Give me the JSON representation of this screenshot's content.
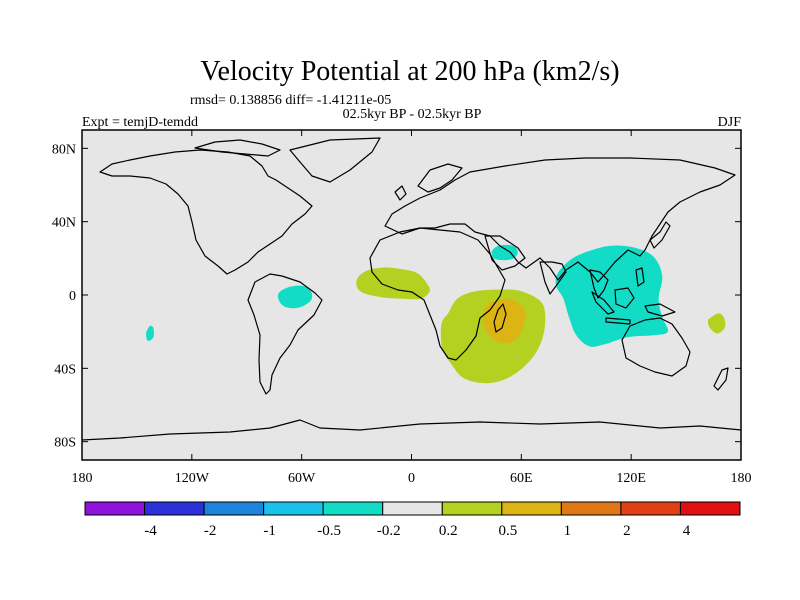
{
  "chart_data": {
    "type": "heatmap",
    "title": "Velocity Potential at 200 hPa (km2/s)",
    "stats_text": "rmsd= 0.138856  diff= -1.41211e-05",
    "left_label": "Expt = temjD-temdd",
    "center_label": "02.5kyr BP - 02.5kyr BP",
    "right_label": "DJF",
    "xlim": [
      -180,
      180
    ],
    "ylim": [
      -90,
      90
    ],
    "x_ticks": [
      {
        "value": -180,
        "label": "180"
      },
      {
        "value": -120,
        "label": "120W"
      },
      {
        "value": -60,
        "label": "60W"
      },
      {
        "value": 0,
        "label": "0"
      },
      {
        "value": 60,
        "label": "60E"
      },
      {
        "value": 120,
        "label": "120E"
      },
      {
        "value": 180,
        "label": "180"
      }
    ],
    "y_ticks": [
      {
        "value": 80,
        "label": "80N"
      },
      {
        "value": 40,
        "label": "40N"
      },
      {
        "value": 0,
        "label": "0"
      },
      {
        "value": -40,
        "label": "40S"
      },
      {
        "value": -80,
        "label": "80S"
      }
    ],
    "colorbar": {
      "colors": [
        "#8c12dc",
        "#2c30d8",
        "#1c84dc",
        "#18c2e8",
        "#12dcc6",
        "#e6e6e6",
        "#b4d020",
        "#dcb414",
        "#e07818",
        "#e04014",
        "#e01010"
      ],
      "tick_labels": [
        "-4",
        "-2",
        "-1",
        "-0.5",
        "-0.2",
        "0.2",
        "0.5",
        "1",
        "2",
        "4"
      ]
    },
    "regions": [
      {
        "name": "tropical-atlantic",
        "level": "0.2 to 0.5",
        "color": "#b4d020",
        "poly": [
          [
            -30,
            8
          ],
          [
            -25,
            13
          ],
          [
            -15,
            15
          ],
          [
            -5,
            14
          ],
          [
            3,
            12
          ],
          [
            8,
            7
          ],
          [
            10,
            2
          ],
          [
            5,
            -2
          ],
          [
            -5,
            -2
          ],
          [
            -18,
            -1
          ],
          [
            -28,
            2
          ]
        ]
      },
      {
        "name": "south-indian-ocean",
        "level": "0.2 to 0.5",
        "color": "#b4d020",
        "poly": [
          [
            20,
            -10
          ],
          [
            25,
            -2
          ],
          [
            35,
            2
          ],
          [
            50,
            3
          ],
          [
            60,
            2
          ],
          [
            70,
            -3
          ],
          [
            73,
            -10
          ],
          [
            72,
            -22
          ],
          [
            67,
            -33
          ],
          [
            58,
            -42
          ],
          [
            48,
            -47
          ],
          [
            38,
            -48
          ],
          [
            28,
            -45
          ],
          [
            22,
            -38
          ],
          [
            17,
            -30
          ],
          [
            16,
            -20
          ],
          [
            17,
            -14
          ]
        ]
      },
      {
        "name": "madagascar-core",
        "level": "0.5 to 1",
        "color": "#dcb414",
        "poly": [
          [
            42,
            -5
          ],
          [
            50,
            -2
          ],
          [
            58,
            -4
          ],
          [
            62,
            -10
          ],
          [
            60,
            -20
          ],
          [
            54,
            -26
          ],
          [
            46,
            -25
          ],
          [
            40,
            -18
          ],
          [
            39,
            -10
          ]
        ]
      },
      {
        "name": "southwest-pacific",
        "level": "0.2 to 0.5",
        "color": "#b4d020",
        "poly": [
          [
            164,
            -12
          ],
          [
            168,
            -10
          ],
          [
            171,
            -13
          ],
          [
            171,
            -18
          ],
          [
            167,
            -21
          ],
          [
            163,
            -18
          ],
          [
            162,
            -14
          ]
        ]
      },
      {
        "name": "maritime-continent",
        "level": "-0.5 to -0.2",
        "color": "#12dcc6",
        "poly": [
          [
            80,
            12
          ],
          [
            88,
            20
          ],
          [
            100,
            25
          ],
          [
            112,
            27
          ],
          [
            125,
            25
          ],
          [
            133,
            20
          ],
          [
            137,
            10
          ],
          [
            135,
            -2
          ],
          [
            137,
            -12
          ],
          [
            140,
            -20
          ],
          [
            132,
            -22
          ],
          [
            118,
            -23
          ],
          [
            105,
            -27
          ],
          [
            97,
            -28
          ],
          [
            90,
            -22
          ],
          [
            86,
            -12
          ],
          [
            83,
            -2
          ],
          [
            79,
            5
          ]
        ]
      },
      {
        "name": "arabia",
        "level": "-0.5 to -0.2",
        "color": "#12dcc6",
        "poly": [
          [
            44,
            24
          ],
          [
            48,
            27
          ],
          [
            55,
            27
          ],
          [
            58,
            24
          ],
          [
            56,
            20
          ],
          [
            50,
            19
          ],
          [
            45,
            20
          ]
        ]
      },
      {
        "name": "amazon",
        "level": "-0.5 to -0.2",
        "color": "#12dcc6",
        "poly": [
          [
            -73,
            0
          ],
          [
            -68,
            4
          ],
          [
            -60,
            5
          ],
          [
            -55,
            2
          ],
          [
            -55,
            -3
          ],
          [
            -62,
            -7
          ],
          [
            -70,
            -6
          ]
        ]
      },
      {
        "name": "south-pacific-small",
        "level": "-0.5 to -0.2",
        "color": "#12dcc6",
        "poly": [
          [
            -143,
            -17
          ],
          [
            -141,
            -18
          ],
          [
            -141,
            -23
          ],
          [
            -144,
            -25
          ],
          [
            -145,
            -21
          ]
        ]
      }
    ]
  }
}
